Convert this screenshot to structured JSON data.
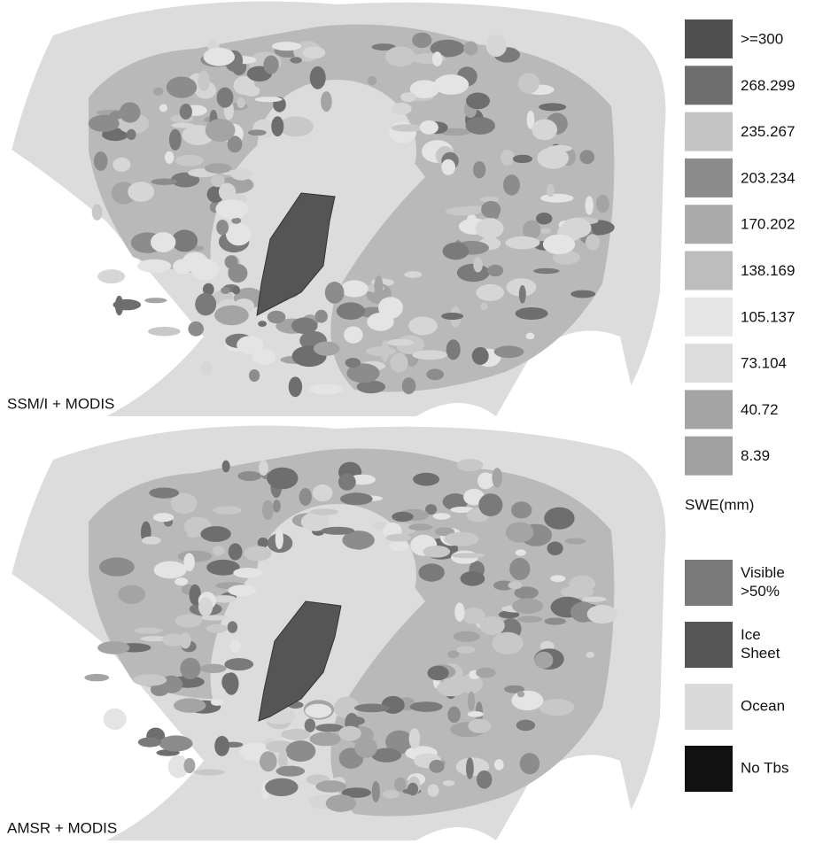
{
  "panels": [
    {
      "label": "SSM/I + MODIS"
    },
    {
      "label": "AMSR + MODIS"
    }
  ],
  "legend": {
    "swe_items": [
      {
        "label": ">=300",
        "color": "#505050"
      },
      {
        "label": "268.299",
        "color": "#6e6e6e"
      },
      {
        "label": "235.267",
        "color": "#c4c4c4"
      },
      {
        "label": "203.234",
        "color": "#8c8c8c"
      },
      {
        "label": "170.202",
        "color": "#ababab"
      },
      {
        "label": "138.169",
        "color": "#bdbdbd"
      },
      {
        "label": "105.137",
        "color": "#e6e6e6"
      },
      {
        "label": "73.104",
        "color": "#dcdcdc"
      },
      {
        "label": "40.72",
        "color": "#a4a4a4"
      },
      {
        "label": "8.39",
        "color": "#a0a0a0"
      }
    ],
    "swe_title": "SWE(mm)",
    "class_items": [
      {
        "lines": [
          "Visible",
          ">50%"
        ],
        "color": "#7a7a7a"
      },
      {
        "lines": [
          "Ice",
          "Sheet"
        ],
        "color": "#555555"
      },
      {
        "lines": [
          "Ocean"
        ],
        "color": "#dadada"
      },
      {
        "lines": [
          "No Tbs"
        ],
        "color": "#111111"
      }
    ]
  }
}
